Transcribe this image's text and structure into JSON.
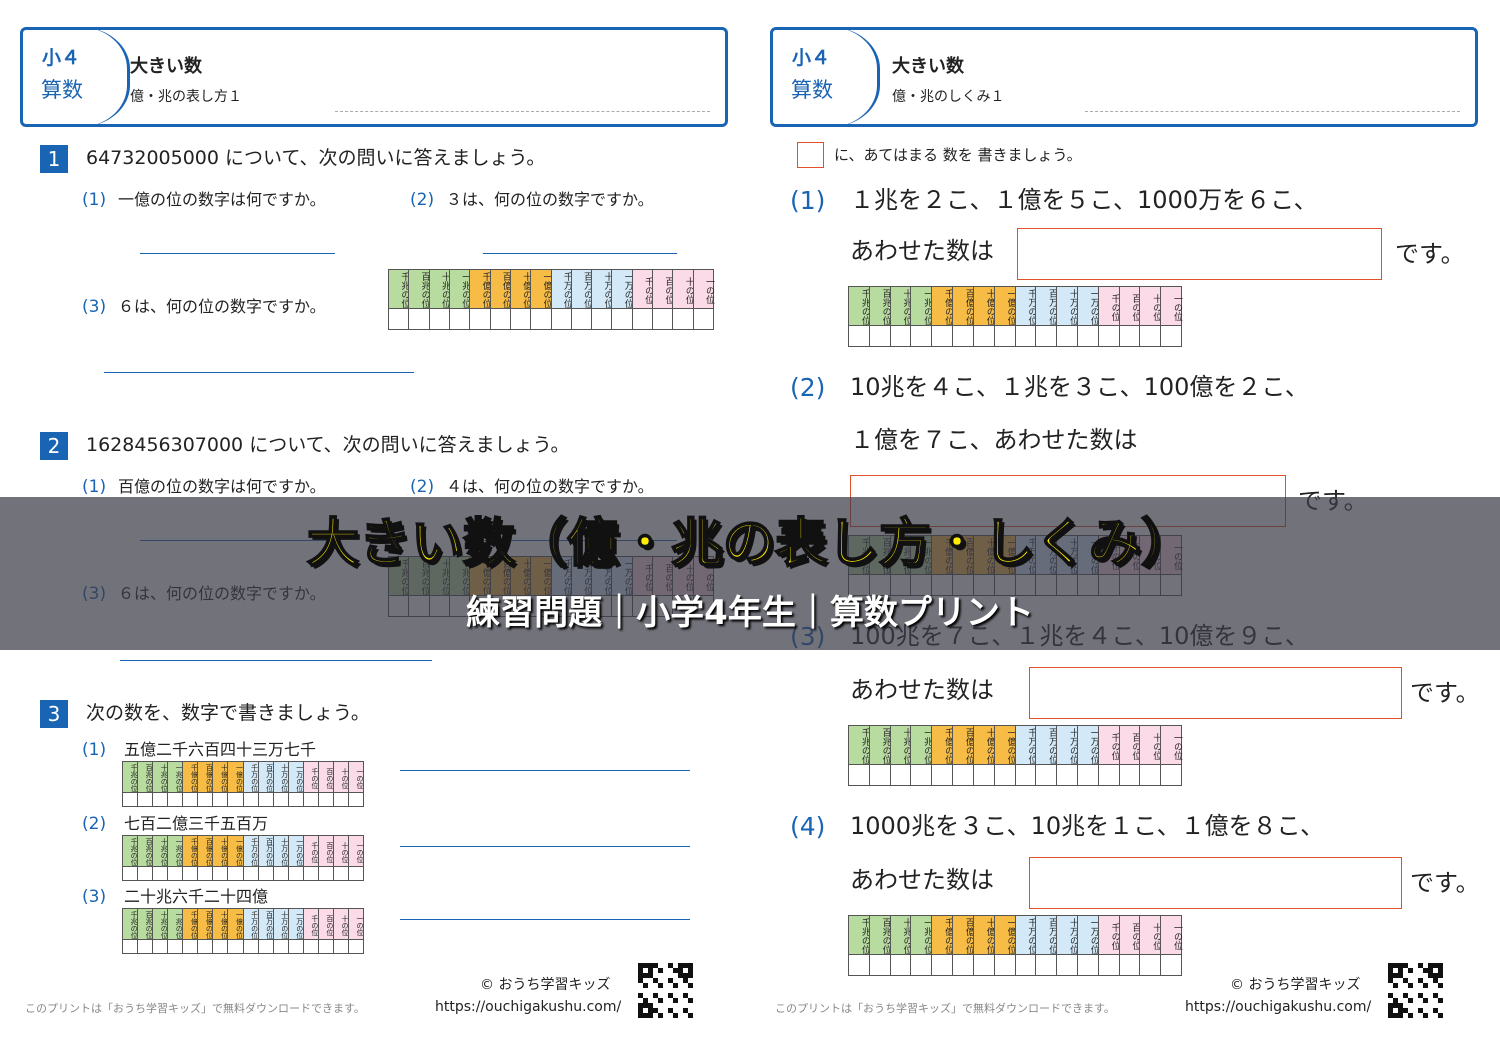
{
  "place_labels": [
    "千兆の位",
    "百兆の位",
    "十兆の位",
    "一兆の位",
    "千億の位",
    "百億の位",
    "十億の位",
    "一億の位",
    "千万の位",
    "百万の位",
    "十万の位",
    "一万の位",
    "千の位",
    "百の位",
    "十の位",
    "一の位"
  ],
  "left": {
    "grade": "小４",
    "subject": "算数",
    "title": "大きい数",
    "subtitle": "億・兆の表し方１",
    "questions": [
      {
        "number": "1",
        "text": "64732005000 について、次の問いに答えましょう。",
        "items": [
          {
            "label": "(1)",
            "text": "一億の位の数字は何ですか。"
          },
          {
            "label": "(2)",
            "text": "３は、何の位の数字ですか。"
          },
          {
            "label": "(3)",
            "text": "６は、何の位の数字ですか。"
          }
        ]
      },
      {
        "number": "2",
        "text": "1628456307000 について、次の問いに答えましょう。",
        "items": [
          {
            "label": "(1)",
            "text": "百億の位の数字は何ですか。"
          },
          {
            "label": "(2)",
            "text": "４は、何の位の数字ですか。"
          },
          {
            "label": "(3)",
            "text": "６は、何の位の数字ですか。"
          }
        ]
      },
      {
        "number": "3",
        "text": "次の数を、数字で書きましょう。",
        "items": [
          {
            "label": "(1)",
            "text": "五億二千六百四十三万七千"
          },
          {
            "label": "(2)",
            "text": "七百二億三千五百万"
          },
          {
            "label": "(3)",
            "text": "二十兆六千二十四億"
          }
        ]
      }
    ]
  },
  "right": {
    "grade": "小４",
    "subject": "算数",
    "title": "大きい数",
    "subtitle": "億・兆のしくみ１",
    "instruction": "に、あてはまる 数を 書きましょう。",
    "problems": [
      {
        "label": "(1)",
        "lines": [
          "１兆を２こ、１億を５こ、1000万を６こ、",
          "あわせた数は"
        ],
        "suffix": "です。"
      },
      {
        "label": "(2)",
        "lines": [
          "10兆を４こ、１兆を３こ、100億を２こ、",
          "１億を７こ、あわせた数は"
        ],
        "suffix": "です。"
      },
      {
        "label": "(3)",
        "lines": [
          "100兆を７こ、１兆を４こ、10億を９こ、",
          "あわせた数は"
        ],
        "suffix": "です。"
      },
      {
        "label": "(4)",
        "lines": [
          "1000兆を３こ、10兆を１こ、１億を８こ、",
          "あわせた数は"
        ],
        "suffix": "です。"
      }
    ]
  },
  "footer": {
    "copyright": "© おうち学習キッズ",
    "url": "https://ouchigakushu.com/",
    "note": "このプリントは「おうち学習キッズ」で無料ダウンロードできます。"
  },
  "banner": {
    "title": "大きい数（億・兆の表し方・しくみ）",
    "subtitle": "練習問題｜小学4年生｜算数プリント"
  }
}
